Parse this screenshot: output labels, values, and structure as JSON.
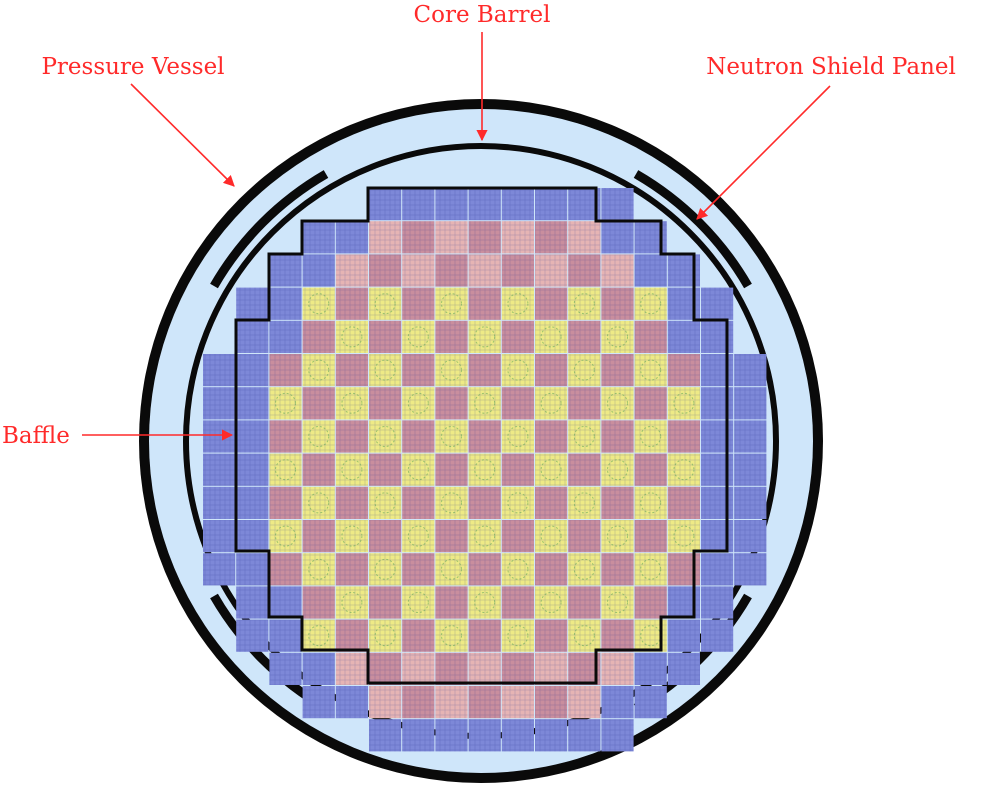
{
  "labels": {
    "core_barrel": "Core Barrel",
    "pressure_vessel": "Pressure Vessel",
    "neutron_shield_panel": "Neutron Shield Panel",
    "baffle": "Baffle"
  },
  "colors": {
    "annotation": "#ff2a2a",
    "vessel_wall": "#0a0a0a",
    "water": "#cfe6fa",
    "reflector_assembly": "#7d88d8",
    "fuel_type_a": "#eeea86",
    "fuel_type_b": "#c98e9e",
    "fuel_type_c": "#e6b4b4"
  },
  "core_map": {
    "legend": {
      "0": "none",
      "1": "reflector_assembly",
      "2": "fuel_type_a",
      "3": "fuel_type_b",
      "4": "fuel_type_c"
    },
    "rows": [
      "00000111111110000",
      "00011434343411000",
      "00114343434341100",
      "01123232323232110",
      "01132323232323110",
      "11323232323232311",
      "11232323232323211",
      "11323232323232311",
      "11232323232323211",
      "11323232323232311",
      "11232323232323211",
      "11323232323232311",
      "01132323232323110",
      "01123232323232110",
      "00114343434341100",
      "00011434343411000",
      "00000111111110000"
    ]
  }
}
